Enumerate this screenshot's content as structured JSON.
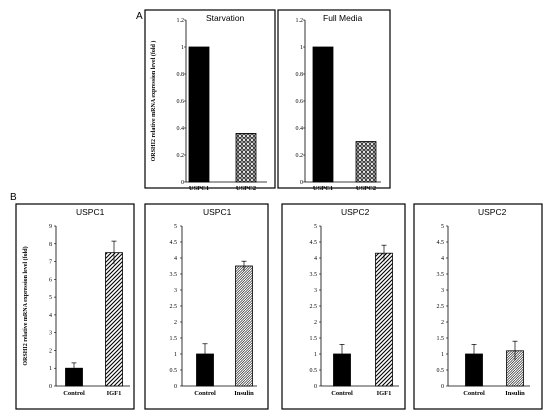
{
  "panel_labels": [
    "A",
    "B"
  ],
  "chart_data": [
    {
      "type": "bar",
      "panel": "A",
      "title": "Starvation",
      "ylabel": "ORSHI2 relative mRNA expression level (fold )",
      "categories": [
        "USPC1",
        "USPC2"
      ],
      "values": [
        1.0,
        0.36
      ],
      "errors": [
        0,
        0
      ],
      "ylim": [
        0,
        1.2
      ],
      "yticks": [
        "0",
        "0.2",
        "0.4",
        "0.6",
        "0.8",
        "1",
        "1.2"
      ],
      "patterns": [
        "solid",
        "dots"
      ]
    },
    {
      "type": "bar",
      "panel": "A",
      "title": "Full Media",
      "ylabel": "",
      "categories": [
        "USPC1",
        "USPC2"
      ],
      "values": [
        1.0,
        0.3
      ],
      "errors": [
        0,
        0
      ],
      "ylim": [
        0,
        1.2
      ],
      "yticks": [
        "0",
        "0.2",
        "0.4",
        "0.6",
        "0.8",
        "1",
        "1.2"
      ],
      "patterns": [
        "solid",
        "dots"
      ]
    },
    {
      "type": "bar",
      "panel": "B",
      "title": "USPC1",
      "ylabel": "ORSHI2 relative mRNA expression level (fold)",
      "categories": [
        "Control",
        "IGF1"
      ],
      "values": [
        1.0,
        7.5
      ],
      "errors": [
        0.3,
        0.65
      ],
      "ylim": [
        0,
        9
      ],
      "yticks": [
        "0",
        "1",
        "2",
        "3",
        "4",
        "5",
        "6",
        "7",
        "8",
        "9"
      ],
      "patterns": [
        "solid",
        "diag"
      ]
    },
    {
      "type": "bar",
      "panel": "B",
      "title": "USPC1",
      "ylabel": "",
      "categories": [
        "Control",
        "Insulin"
      ],
      "values": [
        1.0,
        3.75
      ],
      "errors": [
        0.32,
        0.15
      ],
      "ylim": [
        0,
        5
      ],
      "yticks": [
        "0",
        "0.5",
        "1",
        "1.5",
        "2",
        "2.5",
        "3",
        "3.5",
        "4",
        "4.5",
        "5"
      ],
      "patterns": [
        "solid",
        "zigzag"
      ]
    },
    {
      "type": "bar",
      "panel": "B",
      "title": "USPC2",
      "ylabel": "",
      "categories": [
        "Control",
        "IGF1"
      ],
      "values": [
        1.0,
        4.15
      ],
      "errors": [
        0.3,
        0.25
      ],
      "ylim": [
        0,
        5
      ],
      "yticks": [
        "0",
        "0.5",
        "1",
        "1.5",
        "2",
        "2.5",
        "3",
        "3.5",
        "4",
        "4.5",
        "5"
      ],
      "patterns": [
        "solid",
        "diag"
      ]
    },
    {
      "type": "bar",
      "panel": "B",
      "title": "USPC2",
      "ylabel": "",
      "categories": [
        "Control",
        "Insulin"
      ],
      "values": [
        1.0,
        1.1
      ],
      "errors": [
        0.3,
        0.3
      ],
      "ylim": [
        0,
        5
      ],
      "yticks": [
        "0",
        "0.5",
        "1",
        "1.5",
        "2",
        "2.5",
        "3",
        "3.5",
        "4",
        "4.5",
        "5"
      ],
      "patterns": [
        "solid",
        "zigzag"
      ]
    }
  ]
}
